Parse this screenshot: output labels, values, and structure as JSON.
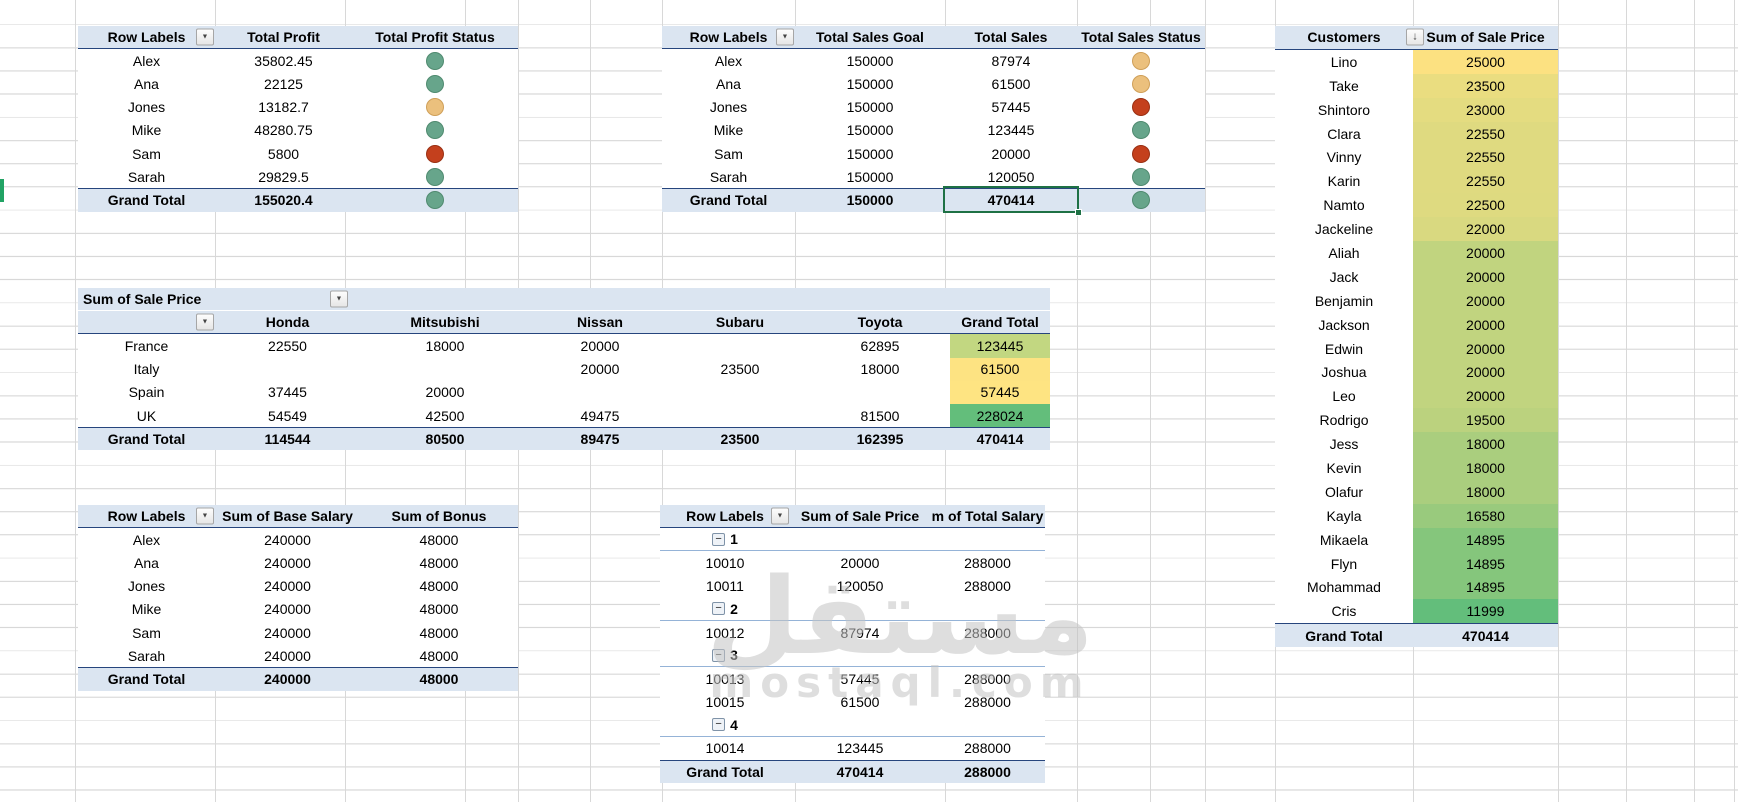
{
  "icons": {
    "dropdown": "▼",
    "sort_filter": "↓",
    "collapse": "−"
  },
  "colors": {
    "header_band": "#dbe5f1",
    "dark_border": "#26457d",
    "group_line": "#95b3d7",
    "gridline": "#d8d8d8",
    "selection_green": "#1e7145",
    "row_indicator_green": "#21a364",
    "status": {
      "green": {
        "fill": "#67a58b",
        "edge": "#4f8a6f"
      },
      "yellow": {
        "fill": "#ebc07d",
        "edge": "#cf9f58"
      },
      "red": {
        "fill": "#c4401d",
        "edge": "#992f12"
      }
    }
  },
  "watermark": {
    "arabic": "مستقل",
    "latin": "mostaql.com"
  },
  "tables": {
    "profit": {
      "headers": [
        "Row Labels",
        "Total Profit",
        "Total Profit Status"
      ],
      "rows": [
        {
          "label": "Alex",
          "value": "35802.45",
          "status": "green"
        },
        {
          "label": "Ana",
          "value": "22125",
          "status": "green"
        },
        {
          "label": "Jones",
          "value": "13182.7",
          "status": "yellow"
        },
        {
          "label": "Mike",
          "value": "48280.75",
          "status": "green"
        },
        {
          "label": "Sam",
          "value": "5800",
          "status": "red"
        },
        {
          "label": "Sarah",
          "value": "29829.5",
          "status": "green"
        }
      ],
      "grand_total": {
        "label": "Grand Total",
        "value": "155020.4",
        "status": "green"
      }
    },
    "sales": {
      "headers": [
        "Row Labels",
        "Total Sales Goal",
        "Total Sales",
        "Total Sales Status"
      ],
      "rows": [
        {
          "label": "Alex",
          "goal": "150000",
          "sales": "87974",
          "status": "yellow"
        },
        {
          "label": "Ana",
          "goal": "150000",
          "sales": "61500",
          "status": "yellow"
        },
        {
          "label": "Jones",
          "goal": "150000",
          "sales": "57445",
          "status": "red"
        },
        {
          "label": "Mike",
          "goal": "150000",
          "sales": "123445",
          "status": "green"
        },
        {
          "label": "Sam",
          "goal": "150000",
          "sales": "20000",
          "status": "red"
        },
        {
          "label": "Sarah",
          "goal": "150000",
          "sales": "120050",
          "status": "green"
        }
      ],
      "grand_total": {
        "label": "Grand Total",
        "goal": "150000",
        "sales": "470414",
        "status": "green"
      }
    },
    "customers": {
      "headers": [
        "Customers",
        "Sum of Sale Price"
      ],
      "rows": [
        {
          "label": "Lino",
          "value": "25000",
          "bg": "#fce181"
        },
        {
          "label": "Take",
          "value": "23500",
          "bg": "#eadd80"
        },
        {
          "label": "Shintoro",
          "value": "23000",
          "bg": "#e4dc80"
        },
        {
          "label": "Clara",
          "value": "22550",
          "bg": "#dfda80"
        },
        {
          "label": "Vinny",
          "value": "22550",
          "bg": "#dfda80"
        },
        {
          "label": "Karin",
          "value": "22550",
          "bg": "#dfda80"
        },
        {
          "label": "Namto",
          "value": "22500",
          "bg": "#deda80"
        },
        {
          "label": "Jackeline",
          "value": "22000",
          "bg": "#d9d980"
        },
        {
          "label": "Aliah",
          "value": "20000",
          "bg": "#c1d47f"
        },
        {
          "label": "Jack",
          "value": "20000",
          "bg": "#c1d47f"
        },
        {
          "label": "Benjamin",
          "value": "20000",
          "bg": "#c1d47f"
        },
        {
          "label": "Jackson",
          "value": "20000",
          "bg": "#c1d47f"
        },
        {
          "label": "Edwin",
          "value": "20000",
          "bg": "#c1d47f"
        },
        {
          "label": "Joshua",
          "value": "20000",
          "bg": "#c1d47f"
        },
        {
          "label": "Leo",
          "value": "20000",
          "bg": "#c1d47f"
        },
        {
          "label": "Rodrigo",
          "value": "19500",
          "bg": "#bbd27e"
        },
        {
          "label": "Jess",
          "value": "18000",
          "bg": "#aace7e"
        },
        {
          "label": "Kevin",
          "value": "18000",
          "bg": "#aace7e"
        },
        {
          "label": "Olafur",
          "value": "18000",
          "bg": "#aace7e"
        },
        {
          "label": "Kayla",
          "value": "16580",
          "bg": "#99ca7d"
        },
        {
          "label": "Mikaela",
          "value": "14895",
          "bg": "#85c67c"
        },
        {
          "label": "Flyn",
          "value": "14895",
          "bg": "#85c67c"
        },
        {
          "label": "Mohammad",
          "value": "14895",
          "bg": "#85c67c"
        },
        {
          "label": "Cris",
          "value": "11999",
          "bg": "#63be7b"
        }
      ],
      "grand_total": {
        "label": "Grand Total",
        "value": "470414"
      }
    },
    "by_country": {
      "title": "Sum of Sale Price",
      "col_headers": [
        "",
        "Honda",
        "Mitsubishi",
        "Nissan",
        "Subaru",
        "Toyota",
        "Grand Total"
      ],
      "rows": [
        {
          "label": "France",
          "values": [
            "22550",
            "18000",
            "20000",
            "",
            "62895"
          ],
          "total": "123445",
          "total_bg": "#c2d781"
        },
        {
          "label": "Italy",
          "values": [
            "",
            "",
            "20000",
            "23500",
            "18000"
          ],
          "total": "61500",
          "total_bg": "#fde382"
        },
        {
          "label": "Spain",
          "values": [
            "37445",
            "20000",
            "",
            "",
            ""
          ],
          "total": "57445",
          "total_bg": "#fee482"
        },
        {
          "label": "UK",
          "values": [
            "54549",
            "42500",
            "49475",
            "",
            "81500"
          ],
          "total": "228024",
          "total_bg": "#63be7b"
        }
      ],
      "grand_total": {
        "label": "Grand Total",
        "values": [
          "114544",
          "80500",
          "89475",
          "23500",
          "162395"
        ],
        "total": "470414"
      }
    },
    "salary": {
      "headers": [
        "Row Labels",
        "Sum of Base Salary",
        "Sum of Bonus"
      ],
      "rows": [
        {
          "label": "Alex",
          "base": "240000",
          "bonus": "48000"
        },
        {
          "label": "Ana",
          "base": "240000",
          "bonus": "48000"
        },
        {
          "label": "Jones",
          "base": "240000",
          "bonus": "48000"
        },
        {
          "label": "Mike",
          "base": "240000",
          "bonus": "48000"
        },
        {
          "label": "Sam",
          "base": "240000",
          "bonus": "48000"
        },
        {
          "label": "Sarah",
          "base": "240000",
          "bonus": "48000"
        }
      ],
      "grand_total": {
        "label": "Grand Total",
        "base": "240000",
        "bonus": "48000"
      }
    },
    "grouped": {
      "headers": [
        "Row Labels",
        "Sum of Sale Price",
        "m of Total Salary"
      ],
      "rows": [
        {
          "type": "group",
          "label": "1"
        },
        {
          "type": "item",
          "label": "10010",
          "sale": "20000",
          "salary": "288000"
        },
        {
          "type": "item",
          "label": "10011",
          "sale": "120050",
          "salary": "288000"
        },
        {
          "type": "group",
          "label": "2"
        },
        {
          "type": "item",
          "label": "10012",
          "sale": "87974",
          "salary": "288000"
        },
        {
          "type": "group",
          "label": "3"
        },
        {
          "type": "item",
          "label": "10013",
          "sale": "57445",
          "salary": "288000"
        },
        {
          "type": "item",
          "label": "10015",
          "sale": "61500",
          "salary": "288000"
        },
        {
          "type": "group",
          "label": "4"
        },
        {
          "type": "item",
          "label": "10014",
          "sale": "123445",
          "salary": "288000"
        }
      ],
      "grand_total": {
        "label": "Grand Total",
        "sale": "470414",
        "salary": "288000"
      }
    }
  }
}
